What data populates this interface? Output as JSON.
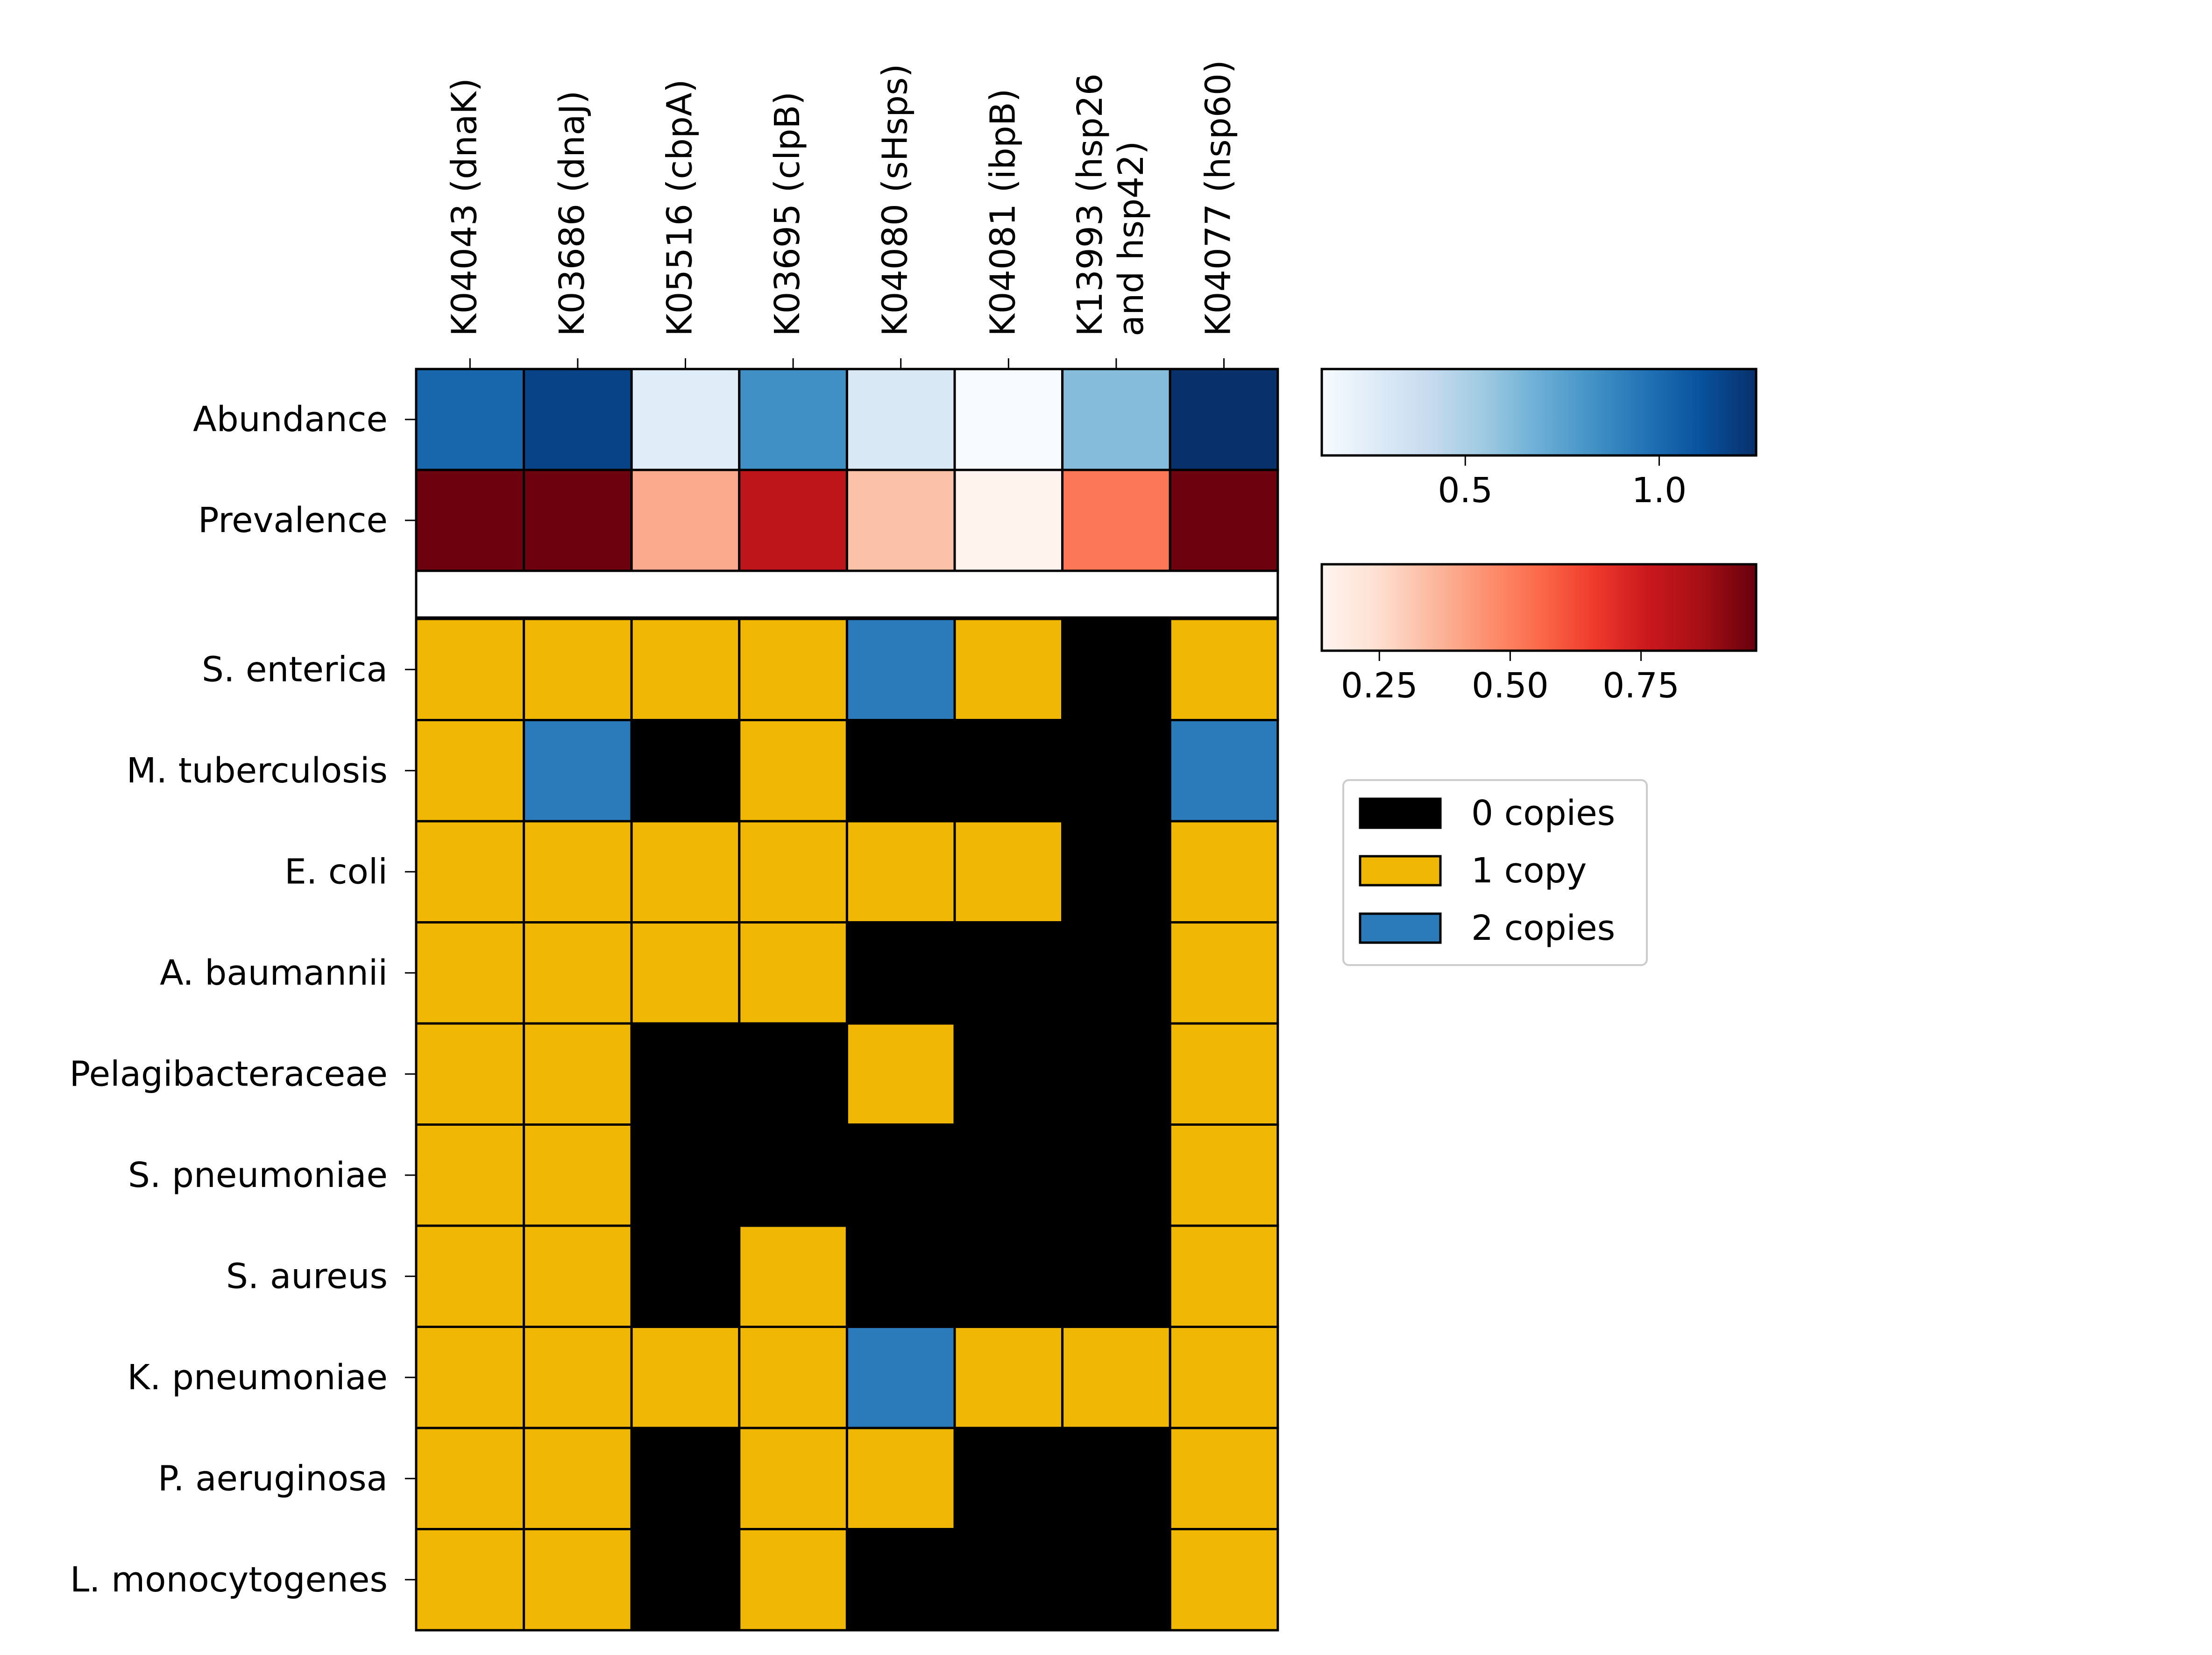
{
  "chart_data": {
    "type": "heatmap",
    "columns": [
      [
        "K04043 (dnaK)"
      ],
      [
        "K03686 (dnaJ)"
      ],
      [
        "K05516 (cbpA)"
      ],
      [
        "K03695 (clpB)"
      ],
      [
        "K04080 (sHsps)"
      ],
      [
        "K04081 (ibpB)"
      ],
      [
        "K13993 (hsp26",
        "and hsp42)"
      ],
      [
        "K04077 (hsp60)"
      ]
    ],
    "summary_rows": [
      {
        "label": "Abundance",
        "colormap": "Blues",
        "values": [
          1.02,
          1.17,
          0.26,
          0.84,
          0.3,
          0.13,
          0.62,
          1.25
        ],
        "colorbar": {
          "range": [
            0.13,
            1.25
          ],
          "ticks": [
            0.5,
            1.0
          ],
          "tick_labels": [
            "0.5",
            "1.0"
          ]
        }
      },
      {
        "label": "Prevalence",
        "colormap": "Reds",
        "values": [
          0.96,
          0.96,
          0.39,
          0.8,
          0.33,
          0.15,
          0.52,
          0.96
        ],
        "colorbar": {
          "range": [
            0.14,
            0.97
          ],
          "ticks": [
            0.25,
            0.5,
            0.75
          ],
          "tick_labels": [
            "0.25",
            "0.50",
            "0.75"
          ]
        }
      }
    ],
    "rows": [
      "S. enterica",
      "M. tuberculosis",
      "E. coli",
      "A. baumannii",
      "Pelagibacteraceae",
      "S. pneumoniae",
      "S. aureus",
      "K. pneumoniae",
      "P. aeruginosa",
      "L. monocytogenes"
    ],
    "copy_numbers": [
      [
        1,
        1,
        1,
        1,
        2,
        1,
        0,
        1
      ],
      [
        1,
        2,
        0,
        1,
        0,
        0,
        0,
        2
      ],
      [
        1,
        1,
        1,
        1,
        1,
        1,
        0,
        1
      ],
      [
        1,
        1,
        1,
        1,
        0,
        0,
        0,
        1
      ],
      [
        1,
        1,
        0,
        0,
        1,
        0,
        0,
        1
      ],
      [
        1,
        1,
        0,
        0,
        0,
        0,
        0,
        1
      ],
      [
        1,
        1,
        0,
        1,
        0,
        0,
        0,
        1
      ],
      [
        1,
        1,
        1,
        1,
        2,
        1,
        1,
        1
      ],
      [
        1,
        1,
        0,
        1,
        1,
        0,
        0,
        1
      ],
      [
        1,
        1,
        0,
        1,
        0,
        0,
        0,
        1
      ]
    ],
    "legend": {
      "placement": "right",
      "entries": [
        {
          "label": "0 copies",
          "value": 0,
          "color": "#000000"
        },
        {
          "label": "1 copy",
          "value": 1,
          "color": "#f0b705"
        },
        {
          "label": "2 copies",
          "value": 2,
          "color": "#2b7bba"
        }
      ]
    }
  }
}
